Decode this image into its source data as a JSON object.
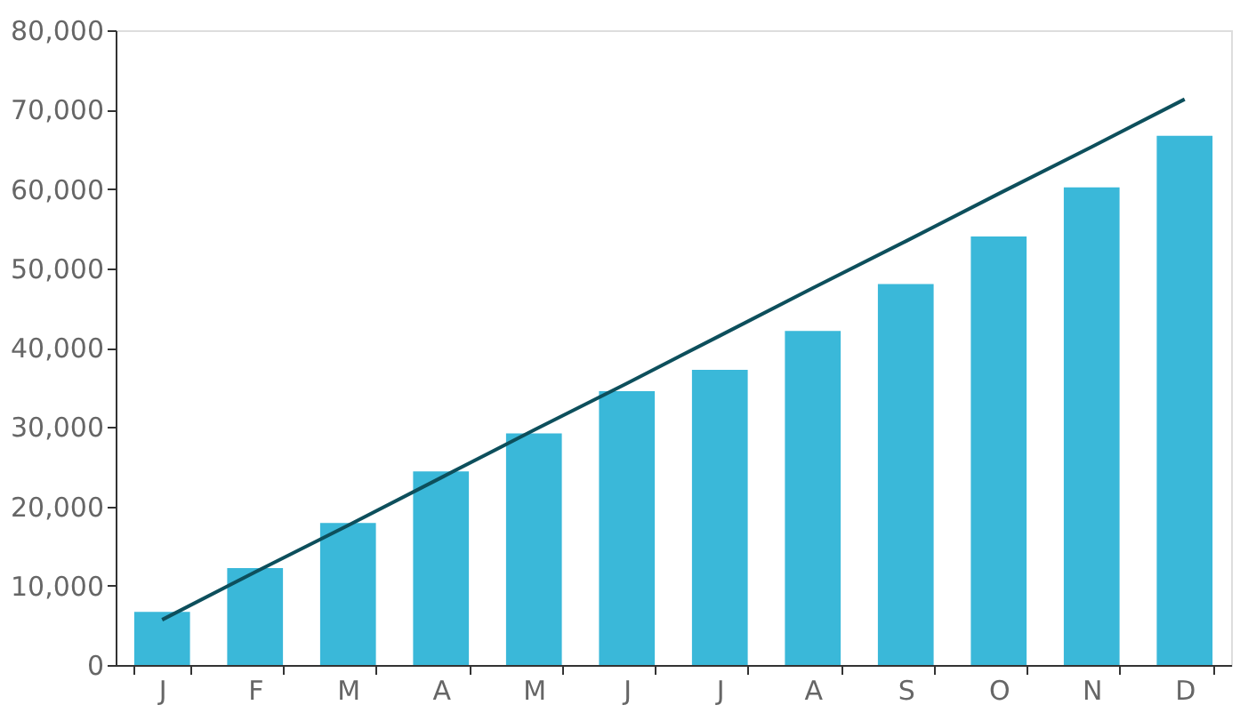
{
  "chart_data": {
    "type": "bar",
    "categories": [
      "J",
      "F",
      "M",
      "A",
      "M",
      "J",
      "J",
      "A",
      "S",
      "O",
      "N",
      "D"
    ],
    "series": [
      {
        "color": "#3ab8d9",
        "values": [
          6700,
          12200,
          17900,
          24400,
          29200,
          34500,
          37200,
          42100,
          48000,
          54000,
          60200,
          66700
        ]
      },
      {
        "type": "line",
        "color": "#0d4f5c",
        "values": [
          5700,
          11700,
          17600,
          23600,
          29600,
          35500,
          41500,
          47500,
          53400,
          59400,
          65300,
          71300
        ]
      }
    ],
    "ylim": [
      0,
      80000
    ],
    "yticks": [
      0,
      {
        "value": 10000,
        "label": "10,000"
      },
      {
        "value": 20000,
        "label": "20,000"
      },
      {
        "value": 30000,
        "label": "30,000"
      },
      {
        "value": 40000,
        "label": "40,000"
      },
      {
        "value": 50000,
        "label": "50,000"
      },
      {
        "value": 60000,
        "label": "60,000"
      },
      {
        "value": 70000,
        "label": "70,000"
      },
      {
        "value": 80000,
        "label": "80,000"
      }
    ]
  }
}
